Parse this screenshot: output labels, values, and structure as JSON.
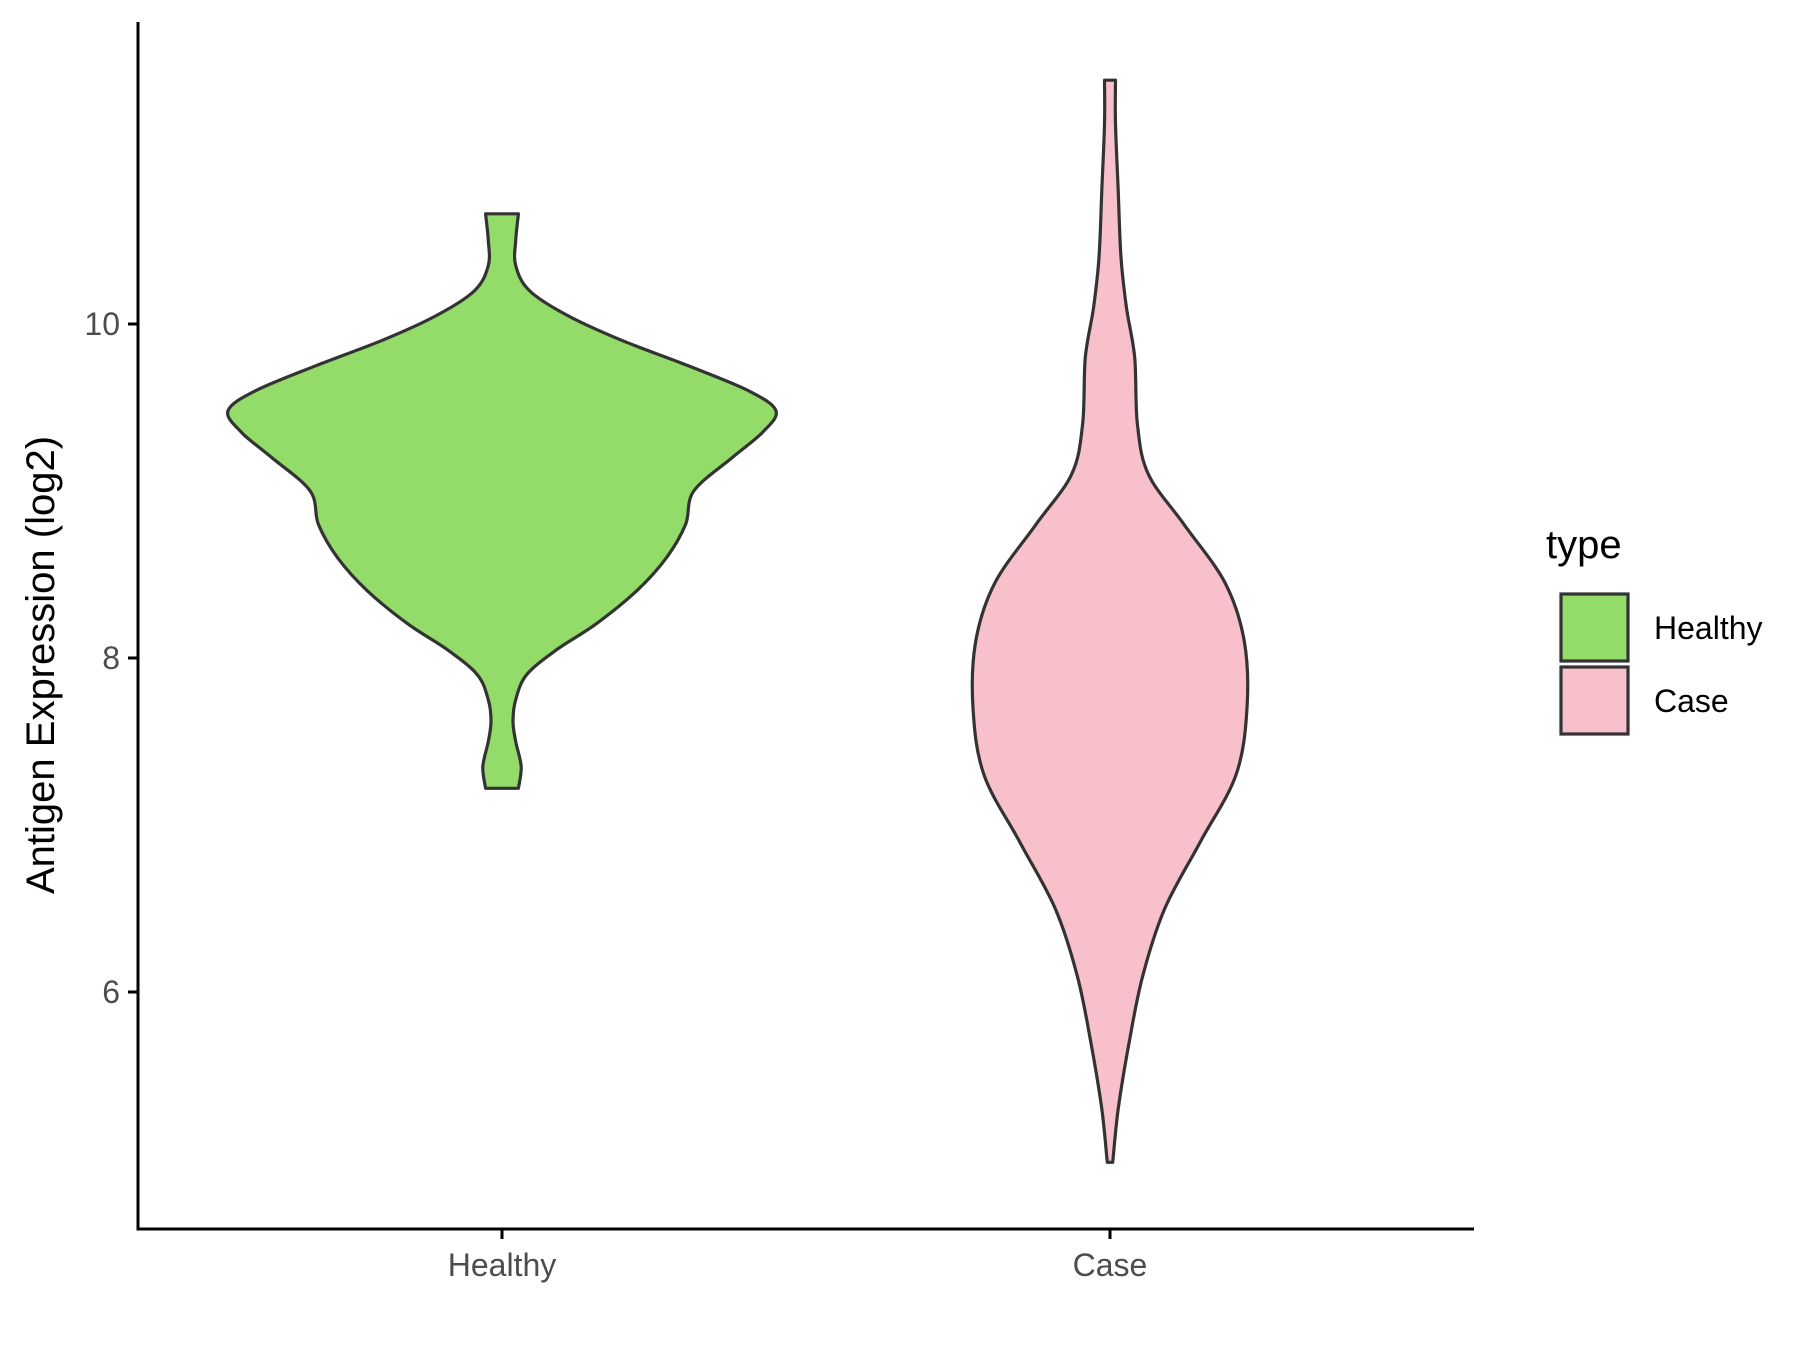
{
  "chart_data": {
    "type": "violin",
    "title": "",
    "xlabel": "",
    "ylabel": "Antigen Expression (log2)",
    "categories": [
      "Healthy",
      "Case"
    ],
    "y_ticks": [
      6,
      8,
      10
    ],
    "ylim": [
      4.7,
      11.9
    ],
    "grid": false,
    "legend": {
      "title": "type",
      "position": "right",
      "entries": [
        {
          "label": "Healthy",
          "color": "#93DC6A"
        },
        {
          "label": "Case",
          "color": "#F7C0CB"
        }
      ]
    },
    "outline_color": "#333333",
    "series": [
      {
        "name": "Healthy",
        "color": "#93DC6A",
        "y_min": 7.22,
        "y_max": 10.66,
        "density_profile": [
          [
            7.22,
            0.06
          ],
          [
            7.35,
            0.07
          ],
          [
            7.5,
            0.05
          ],
          [
            7.62,
            0.04
          ],
          [
            7.75,
            0.05
          ],
          [
            7.9,
            0.09
          ],
          [
            8.05,
            0.2
          ],
          [
            8.2,
            0.34
          ],
          [
            8.4,
            0.49
          ],
          [
            8.6,
            0.6
          ],
          [
            8.8,
            0.67
          ],
          [
            9.0,
            0.7
          ],
          [
            9.2,
            0.84
          ],
          [
            9.35,
            0.95
          ],
          [
            9.48,
            1.0
          ],
          [
            9.6,
            0.9
          ],
          [
            9.75,
            0.68
          ],
          [
            9.9,
            0.44
          ],
          [
            10.05,
            0.24
          ],
          [
            10.2,
            0.1
          ],
          [
            10.35,
            0.05
          ],
          [
            10.5,
            0.05
          ],
          [
            10.66,
            0.06
          ]
        ]
      },
      {
        "name": "Case",
        "color": "#F7C0CB",
        "y_min": 4.98,
        "y_max": 11.46,
        "density_profile": [
          [
            4.98,
            0.01
          ],
          [
            5.3,
            0.03
          ],
          [
            5.7,
            0.07
          ],
          [
            6.1,
            0.12
          ],
          [
            6.5,
            0.2
          ],
          [
            6.9,
            0.33
          ],
          [
            7.3,
            0.46
          ],
          [
            7.7,
            0.5
          ],
          [
            8.1,
            0.49
          ],
          [
            8.45,
            0.42
          ],
          [
            8.8,
            0.27
          ],
          [
            9.1,
            0.14
          ],
          [
            9.4,
            0.1
          ],
          [
            9.8,
            0.09
          ],
          [
            10.1,
            0.06
          ],
          [
            10.4,
            0.04
          ],
          [
            10.8,
            0.03
          ],
          [
            11.2,
            0.02
          ],
          [
            11.46,
            0.02
          ]
        ]
      }
    ]
  }
}
